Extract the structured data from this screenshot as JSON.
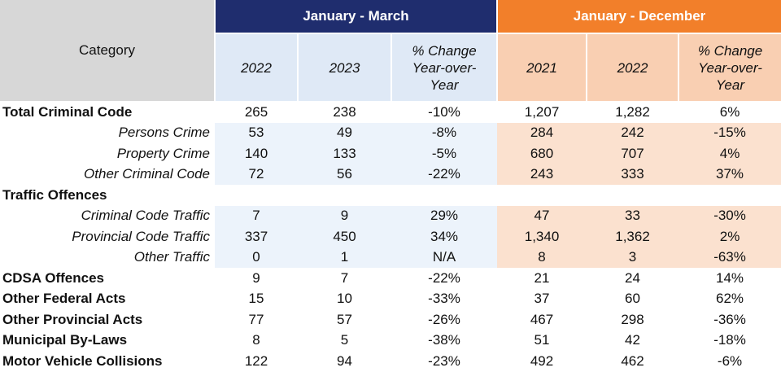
{
  "header": {
    "category": "Category",
    "group_a": "January - March",
    "group_b": "January - December",
    "columns_a": [
      "2022",
      "2023",
      "% Change Year-over-Year"
    ],
    "columns_b": [
      "2021",
      "2022",
      "% Change Year-over-Year"
    ]
  },
  "rows": [
    {
      "label": "Total Criminal Code",
      "type": "main",
      "values": [
        "265",
        "238",
        "-10%",
        "1,207",
        "1,282",
        "6%"
      ]
    },
    {
      "label": "Persons Crime",
      "type": "sub",
      "values": [
        "53",
        "49",
        "-8%",
        "284",
        "242",
        "-15%"
      ]
    },
    {
      "label": "Property Crime",
      "type": "sub",
      "values": [
        "140",
        "133",
        "-5%",
        "680",
        "707",
        "4%"
      ]
    },
    {
      "label": "Other Criminal Code",
      "type": "sub",
      "values": [
        "72",
        "56",
        "-22%",
        "243",
        "333",
        "37%"
      ]
    },
    {
      "label": "Traffic Offences",
      "type": "main",
      "values": [
        "",
        "",
        "",
        "",
        "",
        ""
      ]
    },
    {
      "label": "Criminal Code Traffic",
      "type": "sub",
      "values": [
        "7",
        "9",
        "29%",
        "47",
        "33",
        "-30%"
      ]
    },
    {
      "label": "Provincial Code Traffic",
      "type": "sub",
      "values": [
        "337",
        "450",
        "34%",
        "1,340",
        "1,362",
        "2%"
      ]
    },
    {
      "label": "Other Traffic",
      "type": "sub",
      "values": [
        "0",
        "1",
        "N/A",
        "8",
        "3",
        "-63%"
      ]
    },
    {
      "label": "CDSA Offences",
      "type": "main",
      "values": [
        "9",
        "7",
        "-22%",
        "21",
        "24",
        "14%"
      ]
    },
    {
      "label": "Other Federal Acts",
      "type": "main",
      "values": [
        "15",
        "10",
        "-33%",
        "37",
        "60",
        "62%"
      ]
    },
    {
      "label": "Other Provincial Acts",
      "type": "main",
      "values": [
        "77",
        "57",
        "-26%",
        "467",
        "298",
        "-36%"
      ]
    },
    {
      "label": "Municipal By-Laws",
      "type": "main",
      "values": [
        "8",
        "5",
        "-38%",
        "51",
        "42",
        "-18%"
      ]
    },
    {
      "label": "Motor Vehicle Collisions",
      "type": "main",
      "values": [
        "122",
        "94",
        "-23%",
        "492",
        "462",
        "-6%"
      ]
    }
  ],
  "colors": {
    "group_a": "#1f2d6e",
    "group_b": "#f27f2a",
    "sub_a": "#dfe9f6",
    "sub_b": "#f9cfb2",
    "category_header": "#d7d7d7"
  }
}
